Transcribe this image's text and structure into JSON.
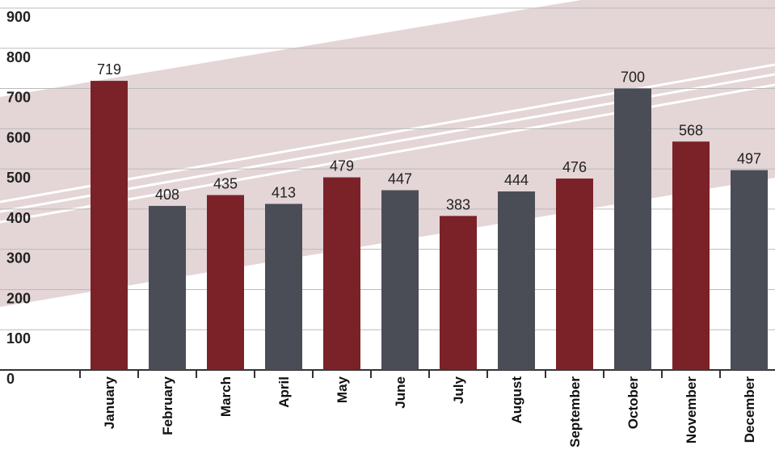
{
  "chart_data": {
    "type": "bar",
    "categories": [
      "January",
      "February",
      "March",
      "April",
      "May",
      "June",
      "July",
      "August",
      "September",
      "October",
      "November",
      "December"
    ],
    "values": [
      719,
      408,
      435,
      413,
      479,
      447,
      383,
      444,
      476,
      700,
      568,
      497
    ],
    "colors": [
      "#7a2228",
      "#4a4d55",
      "#7a2228",
      "#4a4d55",
      "#7a2228",
      "#4a4d55",
      "#7a2228",
      "#4a4d55",
      "#7a2228",
      "#4a4d55",
      "#7a2228",
      "#4a4d55"
    ],
    "ylim": [
      0,
      900
    ],
    "yticks": [
      0,
      100,
      200,
      300,
      400,
      500,
      600,
      700,
      800,
      900
    ],
    "grid": true
  }
}
